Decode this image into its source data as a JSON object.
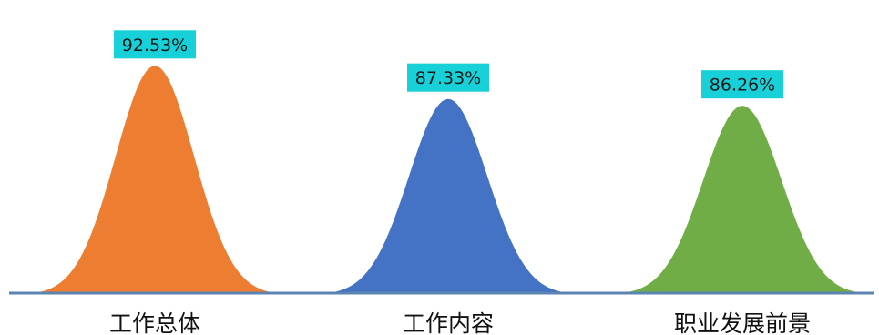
{
  "chart_data": {
    "type": "area",
    "categories": [
      "工作总体",
      "工作内容",
      "职业发展前景"
    ],
    "values": [
      92.53,
      87.33,
      86.26
    ],
    "value_labels": [
      "92.53%",
      "87.33%",
      "86.26%"
    ],
    "unit": "%",
    "grid": false,
    "legend": "none",
    "colors": [
      "#ED7D31",
      "#4472C4",
      "#70AD47"
    ],
    "label_background": "#17D0D8",
    "baseline_color": "#5B84B1"
  }
}
